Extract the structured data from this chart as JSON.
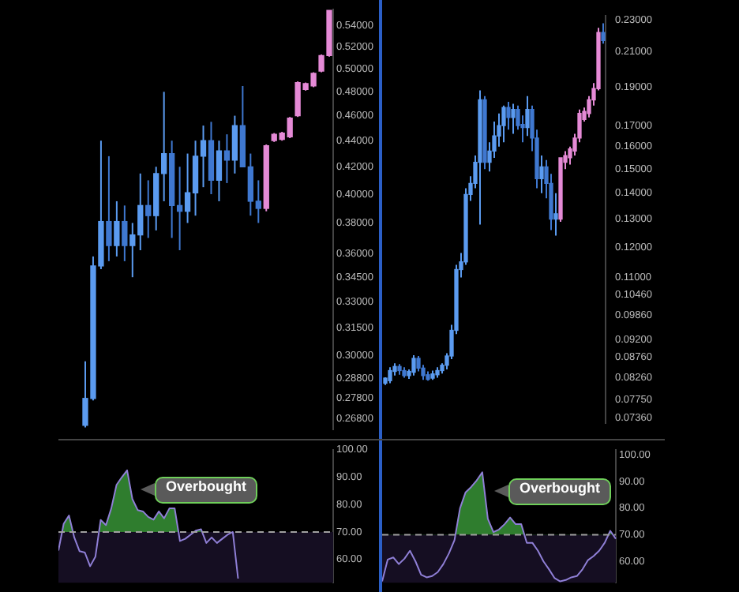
{
  "chart_data": [
    {
      "type": "candlestick",
      "tick_labels": "y",
      "log": true,
      "grid": false,
      "categories": [
        null,
        null,
        null,
        null,
        null,
        null,
        null,
        null,
        null,
        null,
        null,
        null,
        null,
        null,
        null,
        null,
        null,
        null,
        null,
        null,
        null,
        null,
        null,
        null,
        null,
        null,
        null,
        null,
        null,
        null,
        null,
        null
      ],
      "ohlc": [
        [
          0.265,
          0.297,
          0.264,
          0.278
        ],
        [
          0.278,
          0.358,
          0.277,
          0.352
        ],
        [
          0.352,
          0.44,
          0.35,
          0.381
        ],
        [
          0.381,
          0.428,
          0.355,
          0.365
        ],
        [
          0.365,
          0.395,
          0.358,
          0.381
        ],
        [
          0.381,
          0.392,
          0.355,
          0.365
        ],
        [
          0.365,
          0.38,
          0.345,
          0.372
        ],
        [
          0.372,
          0.415,
          0.362,
          0.392
        ],
        [
          0.392,
          0.41,
          0.37,
          0.385
        ],
        [
          0.385,
          0.42,
          0.375,
          0.415
        ],
        [
          0.415,
          0.48,
          0.395,
          0.43
        ],
        [
          0.43,
          0.44,
          0.37,
          0.392
        ],
        [
          0.392,
          0.42,
          0.362,
          0.388
        ],
        [
          0.388,
          0.43,
          0.38,
          0.401
        ],
        [
          0.401,
          0.44,
          0.385,
          0.428
        ],
        [
          0.428,
          0.452,
          0.405,
          0.44
        ],
        [
          0.44,
          0.455,
          0.4,
          0.41
        ],
        [
          0.41,
          0.44,
          0.395,
          0.432
        ],
        [
          0.432,
          0.445,
          0.408,
          0.425
        ],
        [
          0.425,
          0.46,
          0.415,
          0.452
        ],
        [
          0.452,
          0.485,
          0.42,
          0.42
        ],
        [
          0.42,
          0.43,
          0.385,
          0.395
        ],
        [
          0.395,
          0.41,
          0.38,
          0.39
        ],
        [
          0.39,
          0.437,
          0.388,
          0.436
        ],
        [
          0.44,
          0.446,
          0.439,
          0.445
        ],
        [
          0.441,
          0.447,
          0.44,
          0.446
        ],
        [
          0.443,
          0.459,
          0.442,
          0.458
        ],
        [
          0.46,
          0.489,
          0.459,
          0.488
        ],
        [
          0.482,
          0.488,
          0.481,
          0.487
        ],
        [
          0.485,
          0.497,
          0.484,
          0.496
        ],
        [
          0.498,
          0.513,
          0.497,
          0.512
        ],
        [
          0.512,
          0.555,
          0.511,
          0.555
        ]
      ],
      "colors": [
        "#5b9bf0",
        "#5b9bf0",
        "#5b9bf0",
        "#3f78d0",
        "#5b9bf0",
        "#3f78d0",
        "#5b9bf0",
        "#5b9bf0",
        "#3f78d0",
        "#5b9bf0",
        "#5b9bf0",
        "#3f78d0",
        "#3f78d0",
        "#5b9bf0",
        "#5b9bf0",
        "#5b9bf0",
        "#3f78d0",
        "#5b9bf0",
        "#3f78d0",
        "#5b9bf0",
        "#3f78d0",
        "#3f78d0",
        "#3f78d0",
        "#e58ad6",
        "#e58ad6",
        "#e58ad6",
        "#e58ad6",
        "#e58ad6",
        "#e58ad6",
        "#e58ad6",
        "#e58ad6",
        "#e58ad6"
      ],
      "ylim": [
        0.263,
        0.556
      ],
      "yticks": [
        {
          "value": 0.54,
          "label": "0.54000"
        },
        {
          "value": 0.52,
          "label": "0.52000"
        },
        {
          "value": 0.5,
          "label": "0.50000"
        },
        {
          "value": 0.48,
          "label": "0.48000"
        },
        {
          "value": 0.46,
          "label": "0.46000"
        },
        {
          "value": 0.44,
          "label": "0.44000"
        },
        {
          "value": 0.42,
          "label": "0.42000"
        },
        {
          "value": 0.4,
          "label": "0.40000"
        },
        {
          "value": 0.38,
          "label": "0.38000"
        },
        {
          "value": 0.36,
          "label": "0.36000"
        },
        {
          "value": 0.345,
          "label": "0.34500"
        },
        {
          "value": 0.33,
          "label": "0.33000"
        },
        {
          "value": 0.315,
          "label": "0.31500"
        },
        {
          "value": 0.3,
          "label": "0.30000"
        },
        {
          "value": 0.288,
          "label": "0.28800"
        },
        {
          "value": 0.278,
          "label": "0.27800"
        },
        {
          "value": 0.268,
          "label": "0.26800"
        }
      ]
    },
    {
      "type": "candlestick",
      "tick_labels": "y",
      "log": true,
      "grid": false,
      "categories": [
        null,
        null,
        null,
        null,
        null,
        null,
        null,
        null,
        null,
        null,
        null,
        null,
        null,
        null,
        null,
        null,
        null,
        null,
        null,
        null,
        null,
        null,
        null,
        null,
        null,
        null,
        null,
        null,
        null,
        null,
        null,
        null,
        null,
        null,
        null,
        null,
        null,
        null,
        null,
        null,
        null,
        null,
        null,
        null,
        null,
        null,
        null
      ],
      "ohlc": [
        [
          0.0812,
          0.0826,
          0.0808,
          0.0824
        ],
        [
          0.0818,
          0.085,
          0.0812,
          0.0842
        ],
        [
          0.084,
          0.086,
          0.083,
          0.0852
        ],
        [
          0.0852,
          0.0858,
          0.0832,
          0.0842
        ],
        [
          0.0842,
          0.085,
          0.0825,
          0.083
        ],
        [
          0.083,
          0.0845,
          0.0822,
          0.084
        ],
        [
          0.0838,
          0.088,
          0.083,
          0.0872
        ],
        [
          0.0872,
          0.0878,
          0.084,
          0.0848
        ],
        [
          0.0848,
          0.0856,
          0.082,
          0.083
        ],
        [
          0.0832,
          0.084,
          0.0818,
          0.0821
        ],
        [
          0.0824,
          0.0842,
          0.082,
          0.0834
        ],
        [
          0.0832,
          0.085,
          0.0825,
          0.0842
        ],
        [
          0.0842,
          0.086,
          0.0835,
          0.0855
        ],
        [
          0.0855,
          0.0885,
          0.0845,
          0.0878
        ],
        [
          0.0878,
          0.096,
          0.087,
          0.0945
        ],
        [
          0.0945,
          0.114,
          0.0935,
          0.1125
        ],
        [
          0.1125,
          0.118,
          0.11,
          0.115
        ],
        [
          0.115,
          0.142,
          0.114,
          0.1395
        ],
        [
          0.1395,
          0.147,
          0.137,
          0.144
        ],
        [
          0.144,
          0.156,
          0.142,
          0.153
        ],
        [
          0.153,
          0.188,
          0.128,
          0.183
        ],
        [
          0.183,
          0.185,
          0.15,
          0.153
        ],
        [
          0.153,
          0.162,
          0.149,
          0.158
        ],
        [
          0.158,
          0.172,
          0.155,
          0.165
        ],
        [
          0.165,
          0.176,
          0.16,
          0.17
        ],
        [
          0.17,
          0.18,
          0.162,
          0.179
        ],
        [
          0.179,
          0.182,
          0.168,
          0.174
        ],
        [
          0.174,
          0.181,
          0.166,
          0.178
        ],
        [
          0.178,
          0.18,
          0.168,
          0.17
        ],
        [
          0.17,
          0.175,
          0.162,
          0.169
        ],
        [
          0.169,
          0.185,
          0.165,
          0.178
        ],
        [
          0.178,
          0.18,
          0.158,
          0.164
        ],
        [
          0.164,
          0.168,
          0.142,
          0.146
        ],
        [
          0.146,
          0.156,
          0.14,
          0.151
        ],
        [
          0.151,
          0.154,
          0.138,
          0.144
        ],
        [
          0.144,
          0.148,
          0.126,
          0.13
        ],
        [
          0.13,
          0.14,
          0.124,
          0.132
        ],
        [
          0.13,
          0.155,
          0.129,
          0.155
        ],
        [
          0.153,
          0.158,
          0.15,
          0.156
        ],
        [
          0.155,
          0.16,
          0.152,
          0.159
        ],
        [
          0.158,
          0.166,
          0.156,
          0.164
        ],
        [
          0.164,
          0.178,
          0.162,
          0.176
        ],
        [
          0.173,
          0.179,
          0.172,
          0.177
        ],
        [
          0.176,
          0.185,
          0.174,
          0.183
        ],
        [
          0.183,
          0.192,
          0.18,
          0.189
        ],
        [
          0.189,
          0.225,
          0.188,
          0.222
        ],
        [
          0.222,
          0.228,
          0.215,
          0.217
        ]
      ],
      "colors": [
        "#5b9bf0",
        "#5b9bf0",
        "#5b9bf0",
        "#3f78d0",
        "#3f78d0",
        "#5b9bf0",
        "#5b9bf0",
        "#3f78d0",
        "#3f78d0",
        "#3f78d0",
        "#5b9bf0",
        "#5b9bf0",
        "#5b9bf0",
        "#5b9bf0",
        "#5b9bf0",
        "#5b9bf0",
        "#5b9bf0",
        "#5b9bf0",
        "#5b9bf0",
        "#5b9bf0",
        "#5b9bf0",
        "#3f78d0",
        "#5b9bf0",
        "#5b9bf0",
        "#5b9bf0",
        "#5b9bf0",
        "#3f78d0",
        "#5b9bf0",
        "#3f78d0",
        "#3f78d0",
        "#5b9bf0",
        "#3f78d0",
        "#3f78d0",
        "#5b9bf0",
        "#3f78d0",
        "#3f78d0",
        "#5b9bf0",
        "#e58ad6",
        "#e58ad6",
        "#e58ad6",
        "#e58ad6",
        "#e58ad6",
        "#e58ad6",
        "#e58ad6",
        "#e58ad6",
        "#e58ad6",
        "#3f78d0"
      ],
      "ylim": [
        0.0724,
        0.233
      ],
      "yticks": [
        {
          "value": 0.23,
          "label": "0.23000"
        },
        {
          "value": 0.21,
          "label": "0.21000"
        },
        {
          "value": 0.19,
          "label": "0.19000"
        },
        {
          "value": 0.17,
          "label": "0.17000"
        },
        {
          "value": 0.16,
          "label": "0.16000"
        },
        {
          "value": 0.15,
          "label": "0.15000"
        },
        {
          "value": 0.14,
          "label": "0.14000"
        },
        {
          "value": 0.13,
          "label": "0.13000"
        },
        {
          "value": 0.12,
          "label": "0.12000"
        },
        {
          "value": 0.11,
          "label": "0.11000"
        },
        {
          "value": 0.1046,
          "label": "0.10460"
        },
        {
          "value": 0.0986,
          "label": "0.09860"
        },
        {
          "value": 0.092,
          "label": "0.09200"
        },
        {
          "value": 0.0876,
          "label": "0.08760"
        },
        {
          "value": 0.0826,
          "label": "0.08260"
        },
        {
          "value": 0.0775,
          "label": "0.07750"
        },
        {
          "value": 0.0736,
          "label": "0.07360"
        }
      ]
    },
    {
      "type": "line",
      "tick_labels": "y",
      "marker": "none",
      "grid": false,
      "categories": [
        null,
        null,
        null,
        null,
        null,
        null,
        null,
        null,
        null,
        null,
        null,
        null,
        null,
        null,
        null,
        null,
        null,
        null,
        null,
        null,
        null,
        null,
        null,
        null,
        null,
        null,
        null,
        null,
        null,
        null,
        null,
        null,
        null,
        null,
        null,
        null,
        null,
        null,
        null,
        null,
        null,
        null,
        null,
        null,
        null,
        null,
        null,
        null,
        null,
        null,
        null,
        null,
        null
      ],
      "series": [
        {
          "color": "#8f7fd6",
          "values": [
            63.2,
            73,
            76,
            68,
            63,
            62.5,
            57.5,
            61,
            74.4,
            72.5,
            78.6,
            87.2,
            90,
            92.5,
            82,
            78,
            77.5,
            75.5,
            74.5,
            77.5,
            75,
            78.6,
            78.6,
            66.7,
            67.5,
            69,
            70.5,
            71,
            66,
            68,
            66,
            67.5,
            69,
            70,
            53,
            null,
            null,
            null,
            null,
            null,
            null,
            null,
            null,
            null,
            null,
            null,
            null,
            null,
            null,
            null,
            null,
            null,
            null
          ]
        }
      ],
      "ylim": [
        51.5,
        100
      ],
      "yticks": [
        {
          "value": 100,
          "label": "100.00"
        },
        {
          "value": 90,
          "label": "90.00"
        },
        {
          "value": 80,
          "label": "80.00"
        },
        {
          "value": 70,
          "label": "70.00"
        },
        {
          "value": 60,
          "label": "60.00"
        }
      ],
      "ref_lines": [
        {
          "axis": "y",
          "value": 70,
          "color": "#a0a0a0",
          "line_style": "dashed"
        }
      ],
      "bands": [
        {
          "axis": "y",
          "from": 51.5,
          "to": 70,
          "color": "#150e22"
        }
      ],
      "annotations": [
        "Overbought"
      ]
    },
    {
      "type": "line",
      "tick_labels": "y",
      "marker": "none",
      "grid": false,
      "categories": [
        null,
        null,
        null,
        null,
        null,
        null,
        null,
        null,
        null,
        null,
        null,
        null,
        null,
        null,
        null,
        null,
        null,
        null,
        null,
        null,
        null,
        null,
        null,
        null,
        null,
        null,
        null,
        null,
        null,
        null,
        null,
        null,
        null,
        null,
        null,
        null,
        null,
        null,
        null,
        null,
        null,
        null,
        null
      ],
      "series": [
        {
          "color": "#8f7fd6",
          "values": [
            52.5,
            60.7,
            61.5,
            59,
            61,
            64,
            60,
            55,
            54,
            54.5,
            56,
            59,
            63,
            68,
            80,
            86,
            88,
            90.5,
            93.5,
            76,
            71,
            72,
            74,
            76.5,
            74,
            74,
            67,
            67,
            64,
            60,
            57,
            53.7,
            52.5,
            53,
            54,
            54.5,
            57,
            60.5,
            62,
            64,
            67,
            71.5,
            68.5
          ]
        }
      ],
      "ylim": [
        52,
        102
      ],
      "yticks": [
        {
          "value": 100,
          "label": "100.00"
        },
        {
          "value": 90,
          "label": "90.00"
        },
        {
          "value": 80,
          "label": "80.00"
        },
        {
          "value": 70,
          "label": "70.00"
        },
        {
          "value": 60,
          "label": "60.00"
        }
      ],
      "ref_lines": [
        {
          "axis": "y",
          "value": 70,
          "color": "#a0a0a0",
          "line_style": "dashed"
        }
      ],
      "bands": [
        {
          "axis": "y",
          "from": 52,
          "to": 70,
          "color": "#150e22"
        }
      ],
      "annotations": [
        "Overbought"
      ]
    }
  ]
}
